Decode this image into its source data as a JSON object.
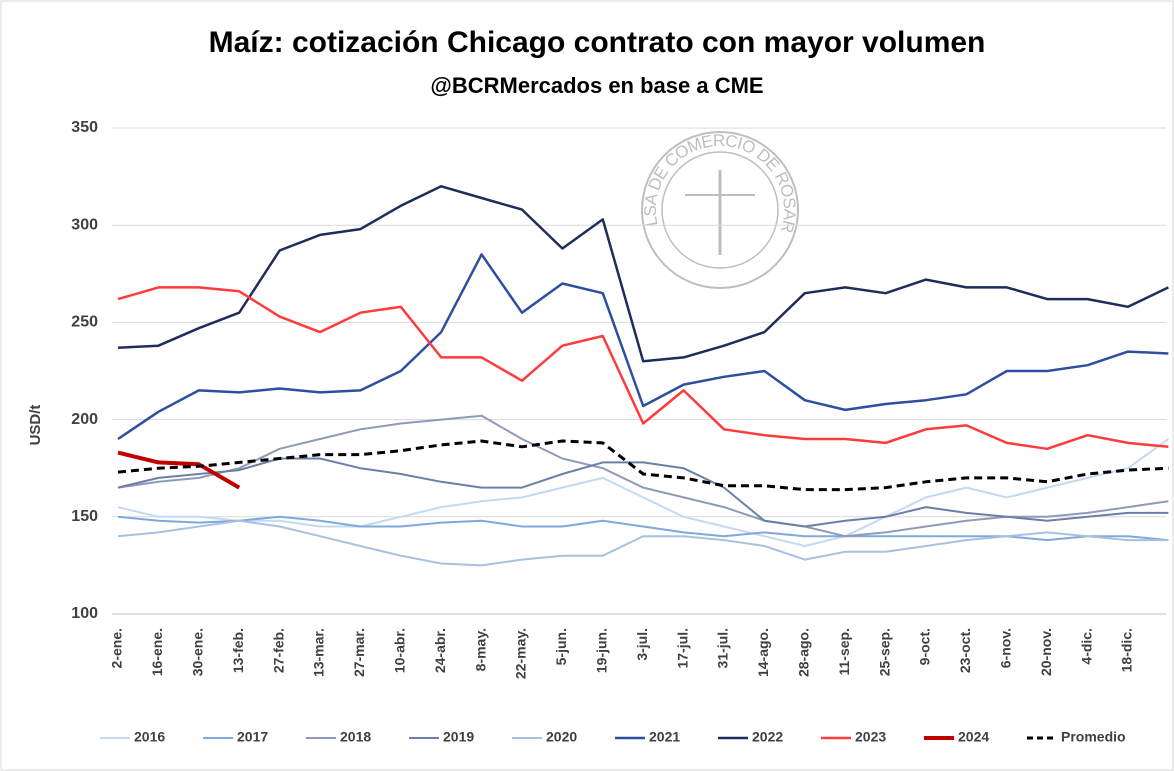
{
  "chart_data": {
    "type": "line",
    "title": "Maíz: cotización Chicago contrato con mayor volumen",
    "subtitle": "@BCRMercados en base a CME",
    "y_label": "USD/t",
    "watermark": "BOLSA DE COMERCIO DE ROSARIO",
    "categories": [
      "2-ene.",
      "16-ene.",
      "30-ene.",
      "13-feb.",
      "27-feb.",
      "13-mar.",
      "27-mar.",
      "10-abr.",
      "24-abr.",
      "8-may.",
      "22-may.",
      "5-jun.",
      "19-jun.",
      "3-jul.",
      "17-jul.",
      "31-jul.",
      "14-ago.",
      "28-ago.",
      "11-sep.",
      "25-sep.",
      "9-oct.",
      "23-oct.",
      "6-nov.",
      "20-nov.",
      "4-dic.",
      "18-dic.",
      null
    ],
    "ylim": [
      100,
      350
    ],
    "yticks": [
      100,
      150,
      200,
      250,
      300,
      350
    ],
    "grid": true,
    "legend": "bottom",
    "series": [
      {
        "name": "2016",
        "color": "#c5d9f1",
        "width": 2,
        "values": [
          155,
          150,
          150,
          148,
          148,
          145,
          145,
          150,
          155,
          158,
          160,
          165,
          170,
          160,
          150,
          145,
          140,
          135,
          140,
          150,
          160,
          165,
          160,
          165,
          170,
          175,
          190
        ]
      },
      {
        "name": "2017",
        "color": "#7ea9dc",
        "width": 2,
        "values": [
          150,
          148,
          147,
          148,
          150,
          148,
          145,
          145,
          147,
          148,
          145,
          145,
          148,
          145,
          142,
          140,
          142,
          140,
          140,
          140,
          140,
          140,
          140,
          138,
          140,
          140,
          138
        ]
      },
      {
        "name": "2018",
        "color": "#8e9bb8",
        "width": 2,
        "values": [
          165,
          168,
          170,
          175,
          185,
          190,
          195,
          198,
          200,
          202,
          190,
          180,
          175,
          165,
          160,
          155,
          148,
          145,
          140,
          142,
          145,
          148,
          150,
          150,
          152,
          155,
          158
        ]
      },
      {
        "name": "2019",
        "color": "#6d7fa6",
        "width": 2,
        "values": [
          165,
          170,
          172,
          174,
          180,
          180,
          175,
          172,
          168,
          165,
          165,
          172,
          178,
          178,
          175,
          165,
          148,
          145,
          148,
          150,
          155,
          152,
          150,
          148,
          150,
          152,
          152
        ]
      },
      {
        "name": "2020",
        "color": "#a9c0e0",
        "width": 2,
        "values": [
          140,
          142,
          145,
          148,
          145,
          140,
          135,
          130,
          126,
          125,
          128,
          130,
          130,
          140,
          140,
          138,
          135,
          128,
          132,
          132,
          135,
          138,
          140,
          142,
          140,
          138,
          138
        ]
      },
      {
        "name": "2021",
        "color": "#2e4fa0",
        "width": 2.5,
        "values": [
          190,
          204,
          215,
          214,
          216,
          214,
          215,
          225,
          245,
          285,
          255,
          270,
          265,
          207,
          218,
          222,
          225,
          210,
          205,
          208,
          210,
          213,
          225,
          225,
          228,
          235,
          234
        ]
      },
      {
        "name": "2022",
        "color": "#1f2d5a",
        "width": 2.5,
        "values": [
          237,
          238,
          247,
          255,
          287,
          295,
          298,
          310,
          320,
          314,
          308,
          288,
          303,
          230,
          232,
          238,
          245,
          265,
          268,
          265,
          272,
          268,
          268,
          262,
          262,
          258,
          268
        ]
      },
      {
        "name": "2023",
        "color": "#ff3b3b",
        "width": 2.5,
        "values": [
          262,
          268,
          268,
          266,
          253,
          245,
          255,
          258,
          232,
          232,
          220,
          238,
          243,
          198,
          215,
          195,
          192,
          190,
          190,
          188,
          195,
          197,
          188,
          185,
          192,
          188,
          186
        ]
      },
      {
        "name": "2024",
        "color": "#c00000",
        "width": 4,
        "values": [
          183,
          178,
          177,
          165,
          null,
          null,
          null,
          null,
          null,
          null,
          null,
          null,
          null,
          null,
          null,
          null,
          null,
          null,
          null,
          null,
          null,
          null,
          null,
          null,
          null,
          null,
          null
        ]
      },
      {
        "name": "Promedio",
        "color": "#000000",
        "width": 3,
        "style": "dashed",
        "values": [
          173,
          175,
          176,
          178,
          180,
          182,
          182,
          184,
          187,
          189,
          186,
          189,
          188,
          172,
          170,
          166,
          166,
          164,
          164,
          165,
          168,
          170,
          170,
          168,
          172,
          174,
          175
        ]
      }
    ]
  }
}
